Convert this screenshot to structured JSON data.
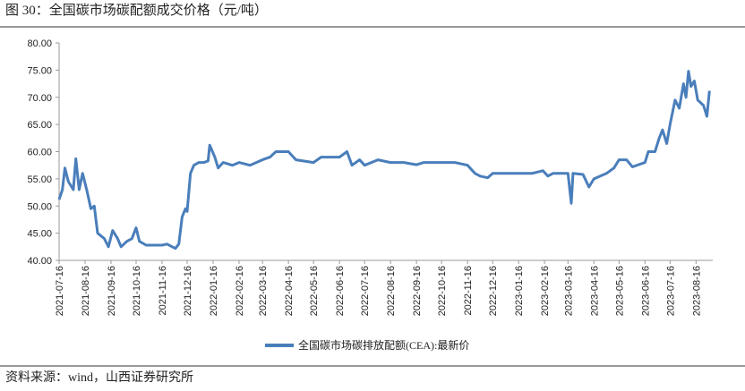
{
  "chart_data": {
    "type": "line",
    "title": "图 30：全国碳市场碳配额成交价格（元/吨）",
    "source": "资料来源：wind，山西证券研究所",
    "x": [
      "2021-07-16",
      "2021-07-20",
      "2021-07-23",
      "2021-07-27",
      "2021-08-02",
      "2021-08-05",
      "2021-08-09",
      "2021-08-13",
      "2021-08-18",
      "2021-08-23",
      "2021-08-27",
      "2021-08-31",
      "2021-09-08",
      "2021-09-13",
      "2021-09-18",
      "2021-09-24",
      "2021-09-28",
      "2021-10-05",
      "2021-10-11",
      "2021-10-16",
      "2021-10-20",
      "2021-10-28",
      "2021-11-05",
      "2021-11-16",
      "2021-11-22",
      "2021-11-28",
      "2021-12-02",
      "2021-12-06",
      "2021-12-10",
      "2021-12-14",
      "2021-12-16",
      "2021-12-20",
      "2021-12-24",
      "2021-12-30",
      "2022-01-05",
      "2022-01-10",
      "2022-01-12",
      "2022-01-18",
      "2022-01-22",
      "2022-01-28",
      "2022-02-08",
      "2022-02-16",
      "2022-03-01",
      "2022-03-16",
      "2022-03-25",
      "2022-04-01",
      "2022-04-16",
      "2022-04-25",
      "2022-05-16",
      "2022-05-25",
      "2022-06-16",
      "2022-06-25",
      "2022-07-01",
      "2022-07-10",
      "2022-07-16",
      "2022-08-01",
      "2022-08-16",
      "2022-09-01",
      "2022-09-16",
      "2022-09-25",
      "2022-10-16",
      "2022-11-01",
      "2022-11-16",
      "2022-11-25",
      "2022-12-01",
      "2022-12-10",
      "2022-12-16",
      "2023-01-01",
      "2023-01-16",
      "2023-02-01",
      "2023-02-14",
      "2023-02-20",
      "2023-02-26",
      "2023-03-16",
      "2023-03-20",
      "2023-03-22",
      "2023-04-03",
      "2023-04-10",
      "2023-04-16",
      "2023-05-01",
      "2023-05-10",
      "2023-05-16",
      "2023-05-25",
      "2023-06-01",
      "2023-06-16",
      "2023-06-20",
      "2023-06-28",
      "2023-07-03",
      "2023-07-07",
      "2023-07-12",
      "2023-07-16",
      "2023-07-22",
      "2023-07-27",
      "2023-08-01",
      "2023-08-04",
      "2023-08-07",
      "2023-08-10",
      "2023-08-14",
      "2023-08-18",
      "2023-08-25",
      "2023-08-29",
      "2023-09-01"
    ],
    "series": [
      {
        "name": "全国碳市场碳排放配额(CEA):最新价",
        "color": "#4a7ebb",
        "values": [
          51.2,
          53,
          57,
          54.5,
          53,
          58.7,
          53,
          56,
          53,
          49.5,
          50,
          45,
          44,
          42.5,
          45.5,
          44,
          42.5,
          43.5,
          44,
          46,
          43.5,
          42.8,
          42.8,
          42.8,
          43,
          42.5,
          42.2,
          43,
          48,
          49.5,
          49,
          56,
          57.5,
          58,
          58,
          58.3,
          61.2,
          59,
          57,
          58,
          57.5,
          58,
          57.5,
          58.5,
          59,
          60,
          60,
          58.5,
          58,
          59,
          59,
          60,
          57.5,
          58.5,
          57.5,
          58.5,
          58,
          58,
          57.6,
          58,
          58,
          58,
          57.5,
          56,
          55.5,
          55.2,
          56,
          56,
          56,
          56,
          56.5,
          55.5,
          56,
          56,
          50.5,
          56,
          55.8,
          53.5,
          55,
          56,
          57,
          58.5,
          58.5,
          57.2,
          58,
          60,
          60,
          62.5,
          64,
          61.5,
          65,
          69.5,
          68,
          72.5,
          70,
          74.8,
          72,
          73,
          69.5,
          68.5,
          66.5,
          71.2
        ]
      }
    ],
    "xlim": [
      "2021-07-16",
      "2023-09-05"
    ],
    "xticks": [
      "2021-07-16",
      "2021-08-16",
      "2021-09-16",
      "2021-10-16",
      "2021-11-16",
      "2021-12-16",
      "2022-01-16",
      "2022-02-16",
      "2022-03-16",
      "2022-04-16",
      "2022-05-16",
      "2022-06-16",
      "2022-07-16",
      "2022-08-16",
      "2022-09-16",
      "2022-10-16",
      "2022-11-16",
      "2022-12-16",
      "2023-01-16",
      "2023-02-16",
      "2023-03-16",
      "2023-04-16",
      "2023-05-16",
      "2023-06-16",
      "2023-07-16",
      "2023-08-16"
    ],
    "ylim": [
      40,
      80
    ],
    "yticks": [
      {
        "value": 40,
        "label": "40.00"
      },
      {
        "value": 45,
        "label": "45.00"
      },
      {
        "value": 50,
        "label": "50.00"
      },
      {
        "value": 55,
        "label": "55.00"
      },
      {
        "value": 60,
        "label": "60.00"
      },
      {
        "value": 65,
        "label": "65.00"
      },
      {
        "value": 70,
        "label": "70.00"
      },
      {
        "value": 75,
        "label": "75.00"
      },
      {
        "value": 80,
        "label": "80.00"
      }
    ],
    "legend": "bottom"
  }
}
